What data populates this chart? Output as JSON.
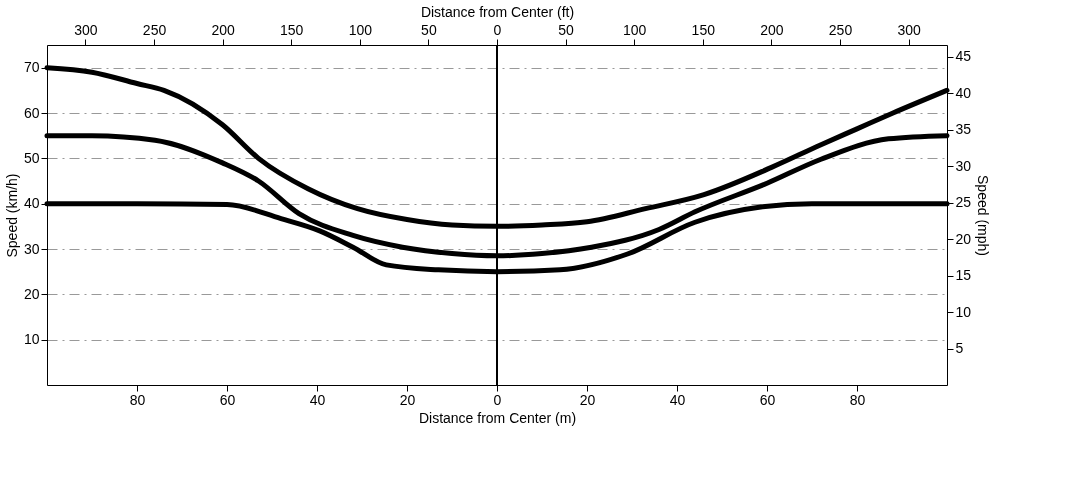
{
  "chart_data": {
    "type": "line",
    "xlabel": "Distance from Center (m)",
    "x2label": "Distance from Center (ft)",
    "ylabel": "Speed (km/h)",
    "y2label": "Speed (mph)",
    "xlim": [
      -100,
      100
    ],
    "xticks": [
      {
        "value": -80,
        "label": "80"
      },
      {
        "value": -60,
        "label": "60"
      },
      {
        "value": -40,
        "label": "40"
      },
      {
        "value": -20,
        "label": "20"
      },
      0,
      20,
      40,
      60,
      80
    ],
    "x2lim": [
      -328,
      328
    ],
    "x2ticks": [
      {
        "value": -300,
        "label": "300"
      },
      {
        "value": -250,
        "label": "250"
      },
      {
        "value": -200,
        "label": "200"
      },
      {
        "value": -150,
        "label": "150"
      },
      {
        "value": -100,
        "label": "100"
      },
      {
        "value": -50,
        "label": "50"
      },
      0,
      50,
      100,
      150,
      200,
      250,
      300
    ],
    "ylim": [
      0,
      75
    ],
    "yticks": [
      10,
      20,
      30,
      40,
      50,
      60,
      70
    ],
    "y2lim": [
      0,
      46.6
    ],
    "y2ticks": [
      5,
      10,
      15,
      20,
      25,
      30,
      35,
      40,
      45
    ],
    "grid": "y",
    "marker": "none",
    "line_style": "solid",
    "ref_lines": [
      {
        "axis": "x",
        "value": 0,
        "color": "#000000"
      }
    ],
    "series": [
      {
        "color": "#000000",
        "x": [
          -100,
          -90,
          -80,
          -74,
          -61,
          -53,
          -42,
          -31,
          -20,
          -10,
          0,
          10,
          20,
          33,
          46,
          61,
          72,
          80,
          88,
          100
        ],
        "values": [
          70,
          69,
          66.5,
          65,
          57.4,
          50,
          43.3,
          38.9,
          36.5,
          35.3,
          35,
          35.3,
          36,
          38.9,
          42,
          48,
          53,
          56.5,
          60,
          65
        ]
      },
      {
        "color": "#000000",
        "x": [
          -100,
          -90,
          -76,
          -61,
          -53,
          -44,
          -32,
          -21,
          -10,
          0,
          10,
          21,
          36,
          44,
          60,
          72,
          87,
          100
        ],
        "values": [
          55,
          55,
          54,
          49,
          45,
          37.8,
          33,
          30.4,
          29,
          28.5,
          29,
          30.4,
          34.3,
          38.2,
          44.5,
          49.8,
          54.3,
          55
        ]
      },
      {
        "color": "#000000",
        "x": [
          -100,
          -80,
          -60,
          -48,
          -39.4,
          -32,
          -24.6,
          -13,
          0,
          14,
          29,
          44,
          59,
          70,
          85,
          100
        ],
        "values": [
          40,
          40,
          39.8,
          36.7,
          34,
          30.4,
          26.5,
          25.4,
          25,
          25.4,
          28.9,
          35.9,
          39.3,
          40,
          40,
          40
        ]
      }
    ]
  }
}
